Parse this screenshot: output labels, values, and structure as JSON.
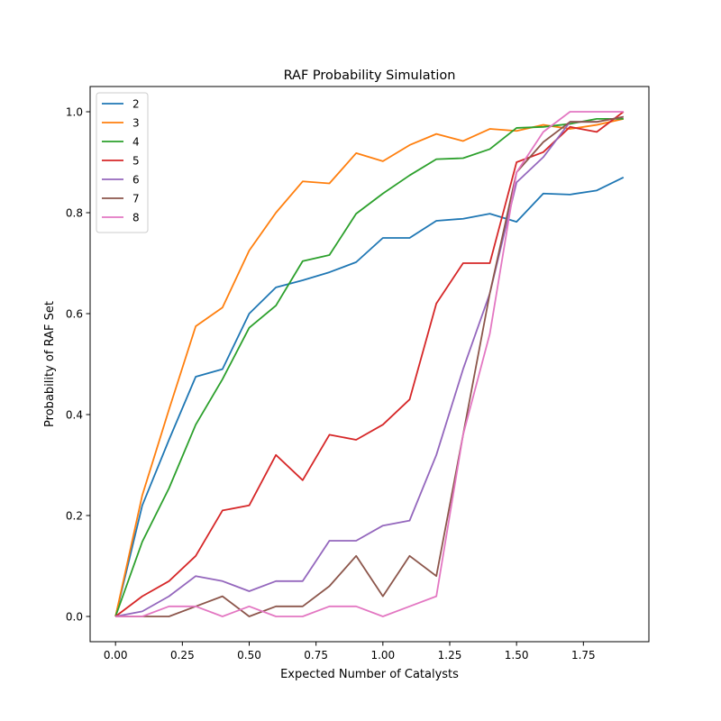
{
  "chart_data": {
    "type": "line",
    "title": "RAF Probability Simulation",
    "xlabel": "Expected Number of Catalysts",
    "ylabel": "Probability of RAF Set",
    "xlim": [
      -0.095,
      1.995
    ],
    "ylim": [
      -0.05,
      1.05
    ],
    "xticks": [
      0.0,
      0.25,
      0.5,
      0.75,
      1.0,
      1.25,
      1.5,
      1.75
    ],
    "xtick_labels": [
      "0.00",
      "0.25",
      "0.50",
      "0.75",
      "1.00",
      "1.25",
      "1.50",
      "1.75"
    ],
    "yticks": [
      0.0,
      0.2,
      0.4,
      0.6,
      0.8,
      1.0
    ],
    "ytick_labels": [
      "0.0",
      "0.2",
      "0.4",
      "0.6",
      "0.8",
      "1.0"
    ],
    "grid": false,
    "legend_position": "upper-left",
    "x": [
      0.0,
      0.1,
      0.2,
      0.3,
      0.4,
      0.5,
      0.6,
      0.7,
      0.8,
      0.9,
      1.0,
      1.1,
      1.2,
      1.3,
      1.4,
      1.5,
      1.6,
      1.7,
      1.8,
      1.9
    ],
    "series": [
      {
        "name": "2",
        "color": "#1f77b4",
        "values": [
          0.0,
          0.22,
          0.35,
          0.475,
          0.49,
          0.6,
          0.652,
          0.666,
          0.682,
          0.702,
          0.75,
          0.75,
          0.784,
          0.788,
          0.798,
          0.782,
          0.838,
          0.836,
          0.844,
          0.87
        ]
      },
      {
        "name": "3",
        "color": "#ff7f0e",
        "values": [
          0.0,
          0.24,
          0.41,
          0.575,
          0.612,
          0.725,
          0.8,
          0.862,
          0.858,
          0.918,
          0.902,
          0.934,
          0.956,
          0.942,
          0.966,
          0.962,
          0.974,
          0.966,
          0.974,
          0.986
        ]
      },
      {
        "name": "4",
        "color": "#2ca02c",
        "values": [
          0.0,
          0.148,
          0.254,
          0.38,
          0.47,
          0.572,
          0.616,
          0.704,
          0.716,
          0.798,
          0.838,
          0.874,
          0.906,
          0.908,
          0.926,
          0.968,
          0.97,
          0.976,
          0.986,
          0.986
        ]
      },
      {
        "name": "5",
        "color": "#d62728",
        "values": [
          0.0,
          0.04,
          0.07,
          0.12,
          0.21,
          0.22,
          0.32,
          0.27,
          0.36,
          0.35,
          0.38,
          0.43,
          0.62,
          0.7,
          0.7,
          0.9,
          0.92,
          0.97,
          0.96,
          1.0
        ]
      },
      {
        "name": "6",
        "color": "#9467bd",
        "values": [
          0.0,
          0.01,
          0.04,
          0.08,
          0.07,
          0.05,
          0.07,
          0.07,
          0.15,
          0.15,
          0.18,
          0.19,
          0.32,
          0.49,
          0.64,
          0.86,
          0.91,
          0.98,
          0.98,
          0.99
        ]
      },
      {
        "name": "7",
        "color": "#8c564b",
        "values": [
          0.0,
          0.0,
          0.0,
          0.02,
          0.04,
          0.0,
          0.02,
          0.02,
          0.06,
          0.12,
          0.04,
          0.12,
          0.08,
          0.36,
          0.64,
          0.88,
          0.94,
          0.98,
          0.98,
          0.99
        ]
      },
      {
        "name": "8",
        "color": "#e377c2",
        "values": [
          0.0,
          0.0,
          0.02,
          0.02,
          0.0,
          0.02,
          0.0,
          0.0,
          0.02,
          0.02,
          0.0,
          0.02,
          0.04,
          0.36,
          0.56,
          0.88,
          0.96,
          1.0,
          1.0,
          1.0
        ]
      }
    ]
  }
}
